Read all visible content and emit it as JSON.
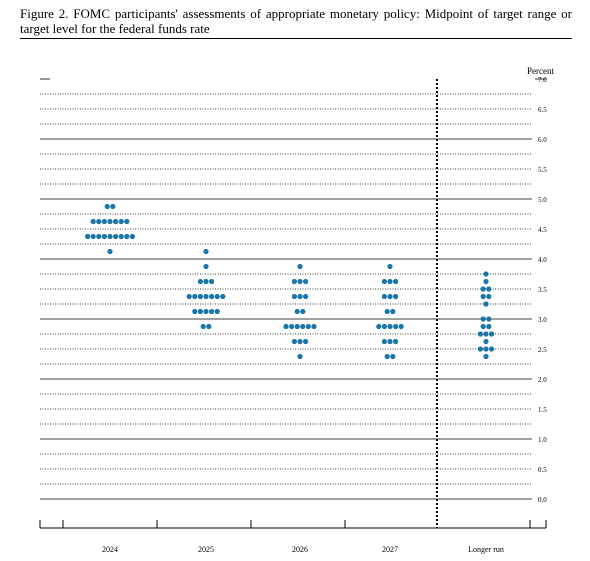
{
  "chart_data": {
    "type": "dot",
    "title": "Figure 2.  FOMC participants' assessments of appropriate monetary policy: Midpoint of target range or target level for the federal funds rate",
    "y_label": "Percent",
    "categories": [
      "2024",
      "2025",
      "2026",
      "2027",
      "Longer run"
    ],
    "color": "#1a75a8",
    "values": [
      [
        {
          "level": 4.875,
          "count": 2
        },
        {
          "level": 4.625,
          "count": 7
        },
        {
          "level": 4.375,
          "count": 9
        },
        {
          "level": 4.125,
          "count": 1
        }
      ],
      [
        {
          "level": 4.125,
          "count": 1
        },
        {
          "level": 3.875,
          "count": 1
        },
        {
          "level": 3.625,
          "count": 3
        },
        {
          "level": 3.375,
          "count": 7
        },
        {
          "level": 3.125,
          "count": 5
        },
        {
          "level": 2.875,
          "count": 2
        }
      ],
      [
        {
          "level": 3.875,
          "count": 1
        },
        {
          "level": 3.625,
          "count": 3
        },
        {
          "level": 3.375,
          "count": 3
        },
        {
          "level": 3.125,
          "count": 2
        },
        {
          "level": 2.875,
          "count": 6
        },
        {
          "level": 2.625,
          "count": 3
        },
        {
          "level": 2.375,
          "count": 1
        }
      ],
      [
        {
          "level": 3.875,
          "count": 1
        },
        {
          "level": 3.625,
          "count": 3
        },
        {
          "level": 3.375,
          "count": 3
        },
        {
          "level": 3.125,
          "count": 2
        },
        {
          "level": 2.875,
          "count": 5
        },
        {
          "level": 2.625,
          "count": 3
        },
        {
          "level": 2.375,
          "count": 2
        }
      ],
      [
        {
          "level": 3.75,
          "count": 1
        },
        {
          "level": 3.625,
          "count": 1
        },
        {
          "level": 3.5,
          "count": 2
        },
        {
          "level": 3.375,
          "count": 2
        },
        {
          "level": 3.25,
          "count": 1
        },
        {
          "level": 3.0,
          "count": 2
        },
        {
          "level": 2.875,
          "count": 2
        },
        {
          "level": 2.75,
          "count": 3
        },
        {
          "level": 2.625,
          "count": 1
        },
        {
          "level": 2.5,
          "count": 3
        },
        {
          "level": 2.375,
          "count": 1
        }
      ]
    ],
    "ylim": [
      0,
      7
    ],
    "yticks": [
      {
        "value": 0,
        "label": "0.0"
      },
      {
        "value": 0.5,
        "label": "0.5"
      },
      {
        "value": 1,
        "label": "1.0"
      },
      {
        "value": 1.5,
        "label": "1.5"
      },
      {
        "value": 2,
        "label": "2.0"
      },
      {
        "value": 2.5,
        "label": "2.5"
      },
      {
        "value": 3,
        "label": "3.0"
      },
      {
        "value": 3.5,
        "label": "3.5"
      },
      {
        "value": 4,
        "label": "4.0"
      },
      {
        "value": 4.5,
        "label": "4.5"
      },
      {
        "value": 5,
        "label": "5.0"
      },
      {
        "value": 5.5,
        "label": "5.5"
      },
      {
        "value": 6,
        "label": "6.0"
      },
      {
        "value": 6.5,
        "label": "6.5"
      },
      {
        "value": 7,
        "label": "7.0"
      }
    ],
    "minor_yticks": [
      0.25,
      0.75,
      1.25,
      1.75,
      2.25,
      2.75,
      3.25,
      3.75,
      4.25,
      4.75,
      5.25,
      5.75,
      6.25,
      6.75
    ],
    "grid": true
  }
}
